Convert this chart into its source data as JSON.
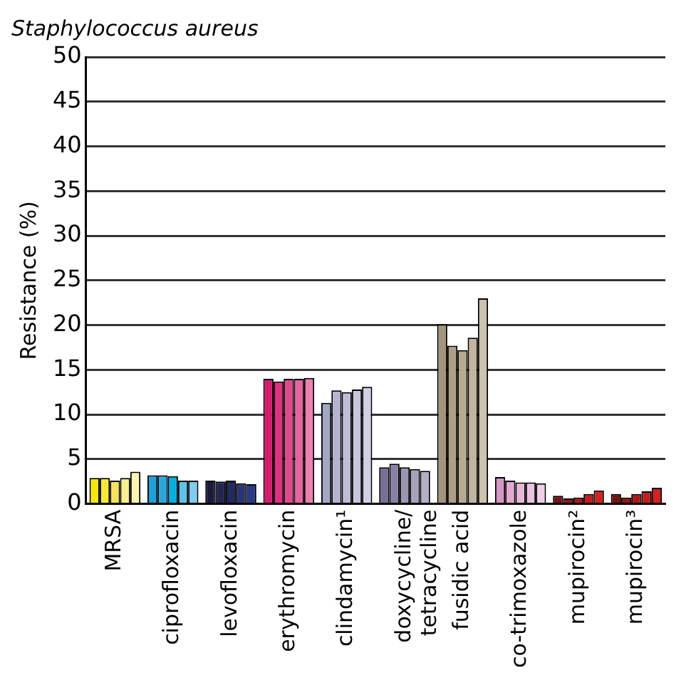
{
  "chart_data": {
    "type": "bar",
    "title": "Staphylococcus aureus",
    "ylabel": "Resistance (%)",
    "categories": [
      "MRSA",
      "ciprofloxacin",
      "levofloxacin",
      "erythromycin",
      "clindamycin¹",
      "doxycycline/\ntetracycline",
      "fusidic acid",
      "co-trimoxazole",
      "mupirocin²",
      "mupirocin³"
    ],
    "series": [
      {
        "values": [
          2.9,
          3.2,
          2.6,
          14.0,
          11.3,
          4.1,
          20.1,
          3.0,
          0.9,
          1.1
        ],
        "colors": [
          "#f7e600",
          "#1aa3dc",
          "#1a1a3c",
          "#d81b70",
          "#a3a7c6",
          "#7a6e96",
          "#a39579",
          "#d894c3",
          "#7a1010",
          "#7a1010"
        ]
      },
      {
        "values": [
          2.9,
          3.2,
          2.5,
          13.7,
          12.7,
          4.5,
          17.7,
          2.6,
          0.6,
          0.7
        ],
        "colors": [
          "#f9e830",
          "#2aa8de",
          "#22254f",
          "#e0307e",
          "#b3b4d0",
          "#8a80a6",
          "#ae9f85",
          "#e2a8d0",
          "#991515",
          "#991515"
        ]
      },
      {
        "values": [
          2.6,
          3.1,
          2.6,
          14.0,
          12.5,
          4.1,
          17.2,
          2.4,
          0.7,
          1.1
        ],
        "colors": [
          "#f7e45a",
          "#00b0e0",
          "#222a5e",
          "#e4478c",
          "#bdbdd6",
          "#9d94b4",
          "#b7aa91",
          "#e8b7d8",
          "#b21818",
          "#b21818"
        ]
      },
      {
        "values": [
          2.9,
          2.6,
          2.3,
          14.0,
          12.8,
          3.9,
          18.6,
          2.4,
          1.1,
          1.4
        ],
        "colors": [
          "#faf08a",
          "#5cc3ea",
          "#2a3577",
          "#e8649d",
          "#c6c6dd",
          "#aaa2bd",
          "#c1b59f",
          "#ebc3de",
          "#c81c1c",
          "#c81c1c"
        ]
      },
      {
        "values": [
          3.6,
          2.6,
          2.2,
          14.1,
          13.1,
          3.7,
          23.0,
          2.3,
          1.5,
          1.8
        ],
        "colors": [
          "#fbf3b0",
          "#7dcdf0",
          "#2a3a8a",
          "#ec7fae",
          "#d0cfe3",
          "#b5afc6",
          "#ccc2b0",
          "#eecfe4",
          "#d82020",
          "#d82020"
        ]
      }
    ],
    "ylim": [
      0,
      50
    ],
    "yticks": [
      0,
      5,
      10,
      15,
      20,
      25,
      30,
      35,
      40,
      45,
      50
    ],
    "grid": "y",
    "legend": false
  }
}
